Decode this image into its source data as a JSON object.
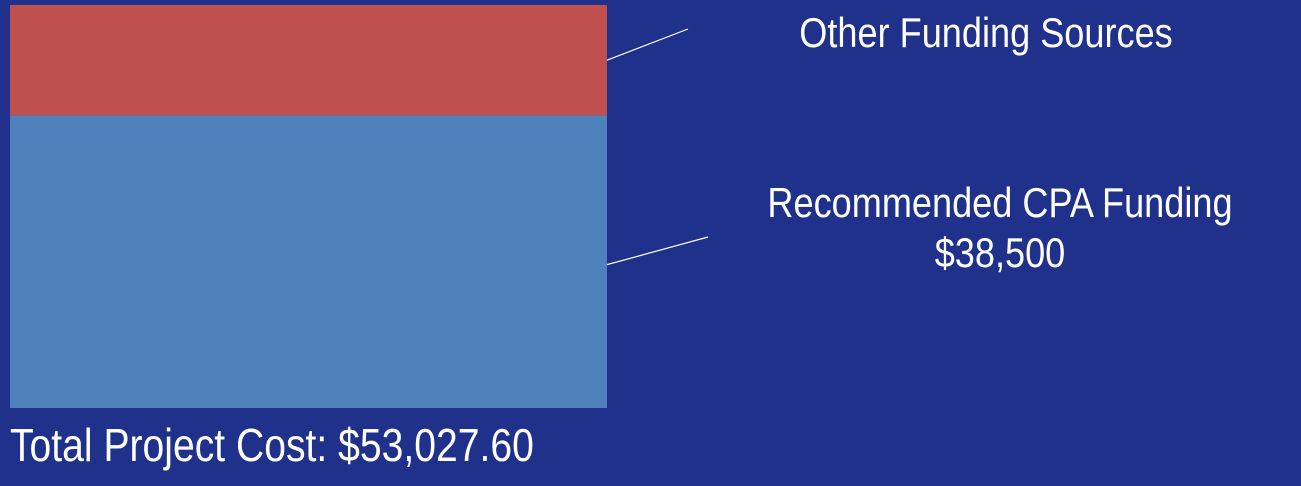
{
  "chart_data": {
    "type": "bar",
    "stacked": true,
    "series": [
      {
        "name": "Recommended CPA Funding",
        "value": 38500,
        "value_label": "$38,500",
        "color": "#4f81bd"
      },
      {
        "name": "Other Funding Sources",
        "value": 14527.6,
        "color": "#c0504d"
      }
    ],
    "total": 53027.6,
    "total_label": "Total Project Cost: $53,027.60",
    "background": "#1f318a",
    "legend": "right, callout lines"
  }
}
